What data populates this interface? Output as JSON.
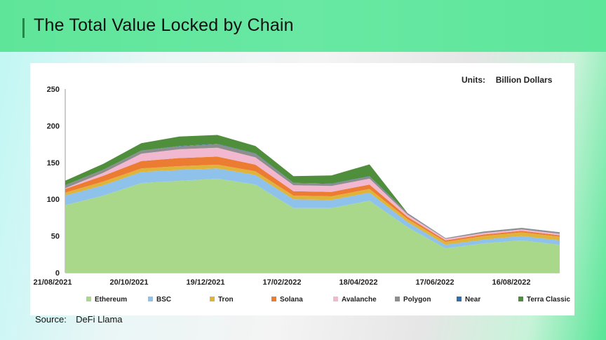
{
  "header": {
    "title": "The Total Value Locked by Chain"
  },
  "units": {
    "label": "Units:",
    "value": "Billion Dollars"
  },
  "source": {
    "label": "Source:",
    "value": "DeFi Llama"
  },
  "chart_data": {
    "type": "area",
    "stacked": true,
    "title": "The Total Value Locked by Chain",
    "xlabel": "",
    "ylabel": "",
    "ylim": [
      0,
      250
    ],
    "yticks": [
      0,
      50,
      100,
      150,
      200,
      250
    ],
    "xticks": [
      "21/08/2021",
      "20/10/2021",
      "19/12/2021",
      "17/02/2022",
      "18/04/2022",
      "17/06/2022",
      "16/08/2022"
    ],
    "x": [
      "Aug-21",
      "Sep-21",
      "Oct-21",
      "Nov-21",
      "Dec-21",
      "Jan-22",
      "Feb-22",
      "Mar-22",
      "Apr-22",
      "May-22",
      "Jun-22",
      "Jul-22",
      "Aug-22",
      "Sep-22"
    ],
    "legend_position": "bottom",
    "series": [
      {
        "name": "Ethereum",
        "color": "#a9d88b",
        "values": [
          92,
          105,
          122,
          125,
          128,
          120,
          88,
          88,
          98,
          62,
          33,
          40,
          44,
          38
        ]
      },
      {
        "name": "BSC",
        "color": "#8ec2ea",
        "values": [
          13,
          14,
          15,
          15,
          14,
          13,
          12,
          11,
          11,
          7,
          5,
          5,
          6,
          6
        ]
      },
      {
        "name": "Tron",
        "color": "#e0b33a",
        "values": [
          4,
          5,
          5,
          5,
          5,
          5,
          5,
          5,
          5,
          4,
          4,
          5,
          5,
          5
        ]
      },
      {
        "name": "Solana",
        "color": "#ec7c32",
        "values": [
          5,
          8,
          10,
          11,
          11,
          9,
          6,
          6,
          6,
          3,
          2,
          2,
          2,
          2
        ]
      },
      {
        "name": "Avalanche",
        "color": "#f2b8cf",
        "values": [
          1,
          4,
          10,
          12,
          12,
          10,
          8,
          8,
          8,
          3,
          2,
          2,
          2,
          2
        ]
      },
      {
        "name": "Polygon",
        "color": "#8e8e8e",
        "values": [
          4,
          4,
          4,
          4,
          5,
          5,
          3,
          3,
          3,
          2,
          1,
          2,
          2,
          2
        ]
      },
      {
        "name": "Near",
        "color": "#2e6fb0",
        "values": [
          0.2,
          0.2,
          0.3,
          0.4,
          0.5,
          0.5,
          0.4,
          0.4,
          0.4,
          0.2,
          0.1,
          0.1,
          0.1,
          0.1
        ]
      },
      {
        "name": "Terra Classic",
        "color": "#4f8f3b",
        "values": [
          6,
          8,
          10,
          13,
          12,
          10,
          9,
          11,
          16,
          0,
          0,
          0,
          0,
          0
        ]
      }
    ]
  }
}
